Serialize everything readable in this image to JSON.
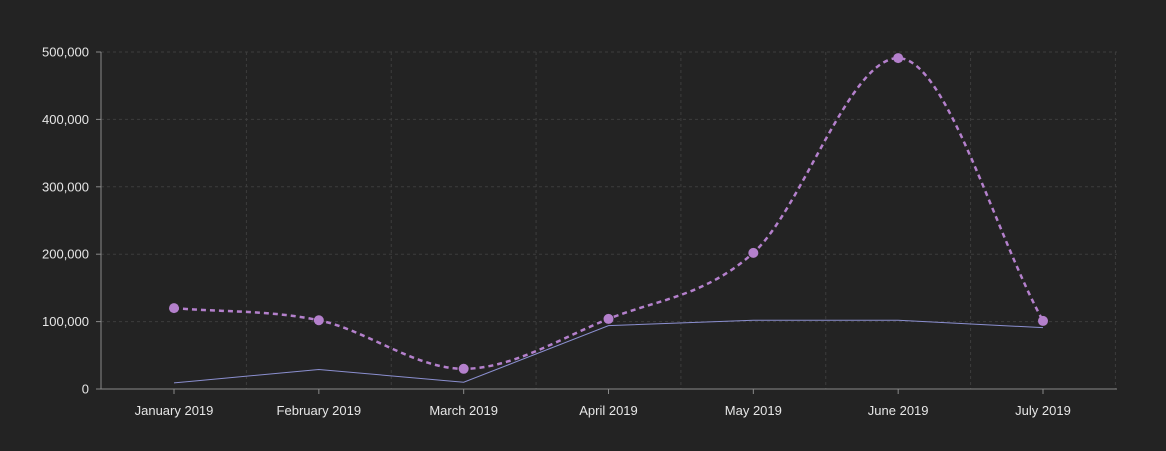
{
  "colors": {
    "background": "#232323",
    "grid": "#3d3d3d",
    "axis": "#8a8a8a",
    "tick_text": "#e6e6e6",
    "series_primary": "#b480cc",
    "series_secondary": "#8b8fd0"
  },
  "chart_data": {
    "type": "line",
    "title": "",
    "xlabel": "",
    "ylabel": "",
    "categories": [
      "January 2019",
      "February 2019",
      "March 2019",
      "April 2019",
      "May 2019",
      "June 2019",
      "July 2019"
    ],
    "ylim": [
      0,
      500000
    ],
    "yticks": [
      0,
      100000,
      200000,
      300000,
      400000,
      500000
    ],
    "ytick_labels": [
      "0",
      "100,000",
      "200,000",
      "300,000",
      "400,000",
      "500,000"
    ],
    "grid": true,
    "legend": "none",
    "series": [
      {
        "values": [
          120000,
          102000,
          30000,
          104000,
          202000,
          491000,
          101000
        ],
        "style": "dashed-smooth-with-markers",
        "color": "#b480cc"
      },
      {
        "values": [
          9000,
          29000,
          10000,
          94000,
          102000,
          102000,
          91000
        ],
        "style": "solid-thin",
        "color": "#8b8fd0"
      }
    ]
  }
}
